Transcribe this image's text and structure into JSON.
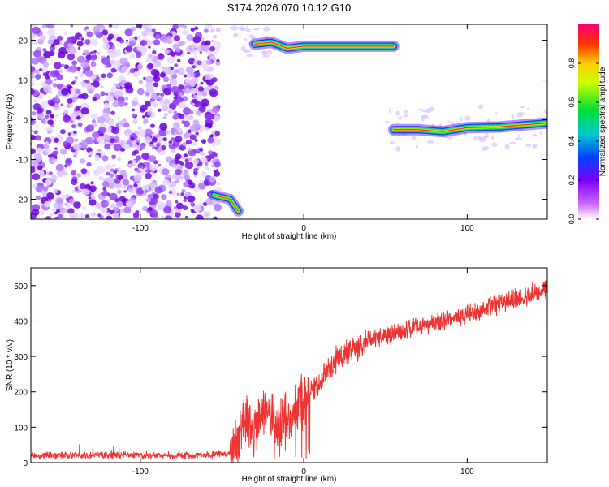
{
  "title": "S174.2026.070.10.12.G10",
  "colors": {
    "snr_line": "#ee3333",
    "axis": "#000000",
    "noise_purple": "#8a2be2",
    "ridge_core": "#ff2020"
  },
  "chart_data": [
    {
      "type": "heatmap",
      "title": "S174.2026.070.10.12.G10",
      "xlabel": "Height of straight line (km)",
      "ylabel": "Frequency (Hz)",
      "xlim": [
        -167,
        149
      ],
      "ylim": [
        -25,
        24
      ],
      "xticks": [
        -100,
        0,
        100
      ],
      "yticks": [
        -20,
        -10,
        0,
        10,
        20
      ],
      "colorbar": {
        "label": "Normalized spectral amplitude",
        "range": [
          0,
          1
        ],
        "ticks": [
          0.0,
          0.2,
          0.4,
          0.6,
          0.8
        ]
      },
      "features": [
        {
          "name": "broadband noise",
          "x_range": [
            -167,
            -52
          ],
          "y_range": [
            -25,
            24
          ]
        },
        {
          "name": "upper ridge",
          "x": [
            -30,
            -20,
            -10,
            0,
            10,
            30,
            55
          ],
          "y": [
            19,
            19.5,
            18,
            18.5,
            18.5,
            18.5,
            18.5
          ]
        },
        {
          "name": "lower ridge",
          "x": [
            55,
            70,
            85,
            100,
            120,
            149
          ],
          "y": [
            -2.5,
            -2.5,
            -3,
            -2,
            -1.8,
            -0.8
          ]
        },
        {
          "name": "lower-left ridge",
          "x": [
            -55,
            -45,
            -40
          ],
          "y": [
            -19,
            -20,
            -23
          ]
        }
      ]
    },
    {
      "type": "line",
      "xlabel": "Height of straight line (km)",
      "ylabel": "SNR (10 * v/v)",
      "xlim": [
        -167,
        149
      ],
      "ylim": [
        0,
        550
      ],
      "xticks": [
        -100,
        0,
        100
      ],
      "yticks": [
        0,
        100,
        200,
        300,
        400,
        500
      ],
      "series": [
        {
          "name": "SNR",
          "x": [
            -167,
            -140,
            -110,
            -80,
            -55,
            -45,
            -40,
            -35,
            -30,
            -25,
            -20,
            -15,
            -10,
            -5,
            0,
            5,
            10,
            15,
            20,
            30,
            40,
            50,
            60,
            70,
            80,
            90,
            100,
            110,
            120,
            130,
            140,
            149
          ],
          "y": [
            22,
            20,
            22,
            20,
            23,
            25,
            60,
            130,
            90,
            140,
            120,
            110,
            120,
            160,
            180,
            200,
            230,
            260,
            290,
            320,
            345,
            360,
            370,
            385,
            395,
            405,
            420,
            435,
            450,
            465,
            478,
            490
          ]
        }
      ]
    }
  ]
}
